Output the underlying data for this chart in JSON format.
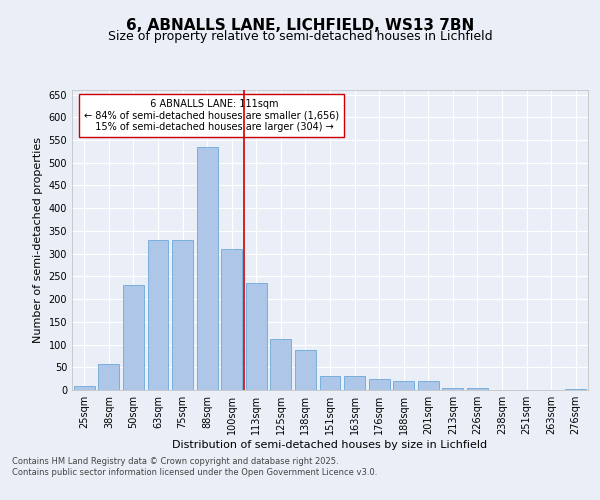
{
  "title": "6, ABNALLS LANE, LICHFIELD, WS13 7BN",
  "subtitle": "Size of property relative to semi-detached houses in Lichfield",
  "xlabel": "Distribution of semi-detached houses by size in Lichfield",
  "ylabel": "Number of semi-detached properties",
  "categories": [
    "25sqm",
    "38sqm",
    "50sqm",
    "63sqm",
    "75sqm",
    "88sqm",
    "100sqm",
    "113sqm",
    "125sqm",
    "138sqm",
    "151sqm",
    "163sqm",
    "176sqm",
    "188sqm",
    "201sqm",
    "213sqm",
    "226sqm",
    "238sqm",
    "251sqm",
    "263sqm",
    "276sqm"
  ],
  "values": [
    8,
    58,
    230,
    330,
    330,
    535,
    310,
    235,
    113,
    87,
    30,
    30,
    25,
    19,
    19,
    5,
    5,
    0,
    0,
    0,
    3
  ],
  "bar_color": "#aec6e8",
  "bar_edge_color": "#5a9fd4",
  "vline_index": 7,
  "marker_label": "6 ABNALLS LANE: 111sqm",
  "pct_smaller": "84% of semi-detached houses are smaller (1,656)",
  "pct_larger": "15% of semi-detached houses are larger (304)",
  "vline_color": "#cc0000",
  "annotation_box_color": "#ffffff",
  "annotation_box_edge": "#cc0000",
  "ylim": [
    0,
    660
  ],
  "yticks": [
    0,
    50,
    100,
    150,
    200,
    250,
    300,
    350,
    400,
    450,
    500,
    550,
    600,
    650
  ],
  "bg_color": "#eaeff7",
  "plot_bg_color": "#eaeff7",
  "footer_text": "Contains HM Land Registry data © Crown copyright and database right 2025.\nContains public sector information licensed under the Open Government Licence v3.0.",
  "title_fontsize": 11,
  "subtitle_fontsize": 9,
  "xlabel_fontsize": 8,
  "ylabel_fontsize": 8,
  "tick_fontsize": 7,
  "annotation_fontsize": 7
}
